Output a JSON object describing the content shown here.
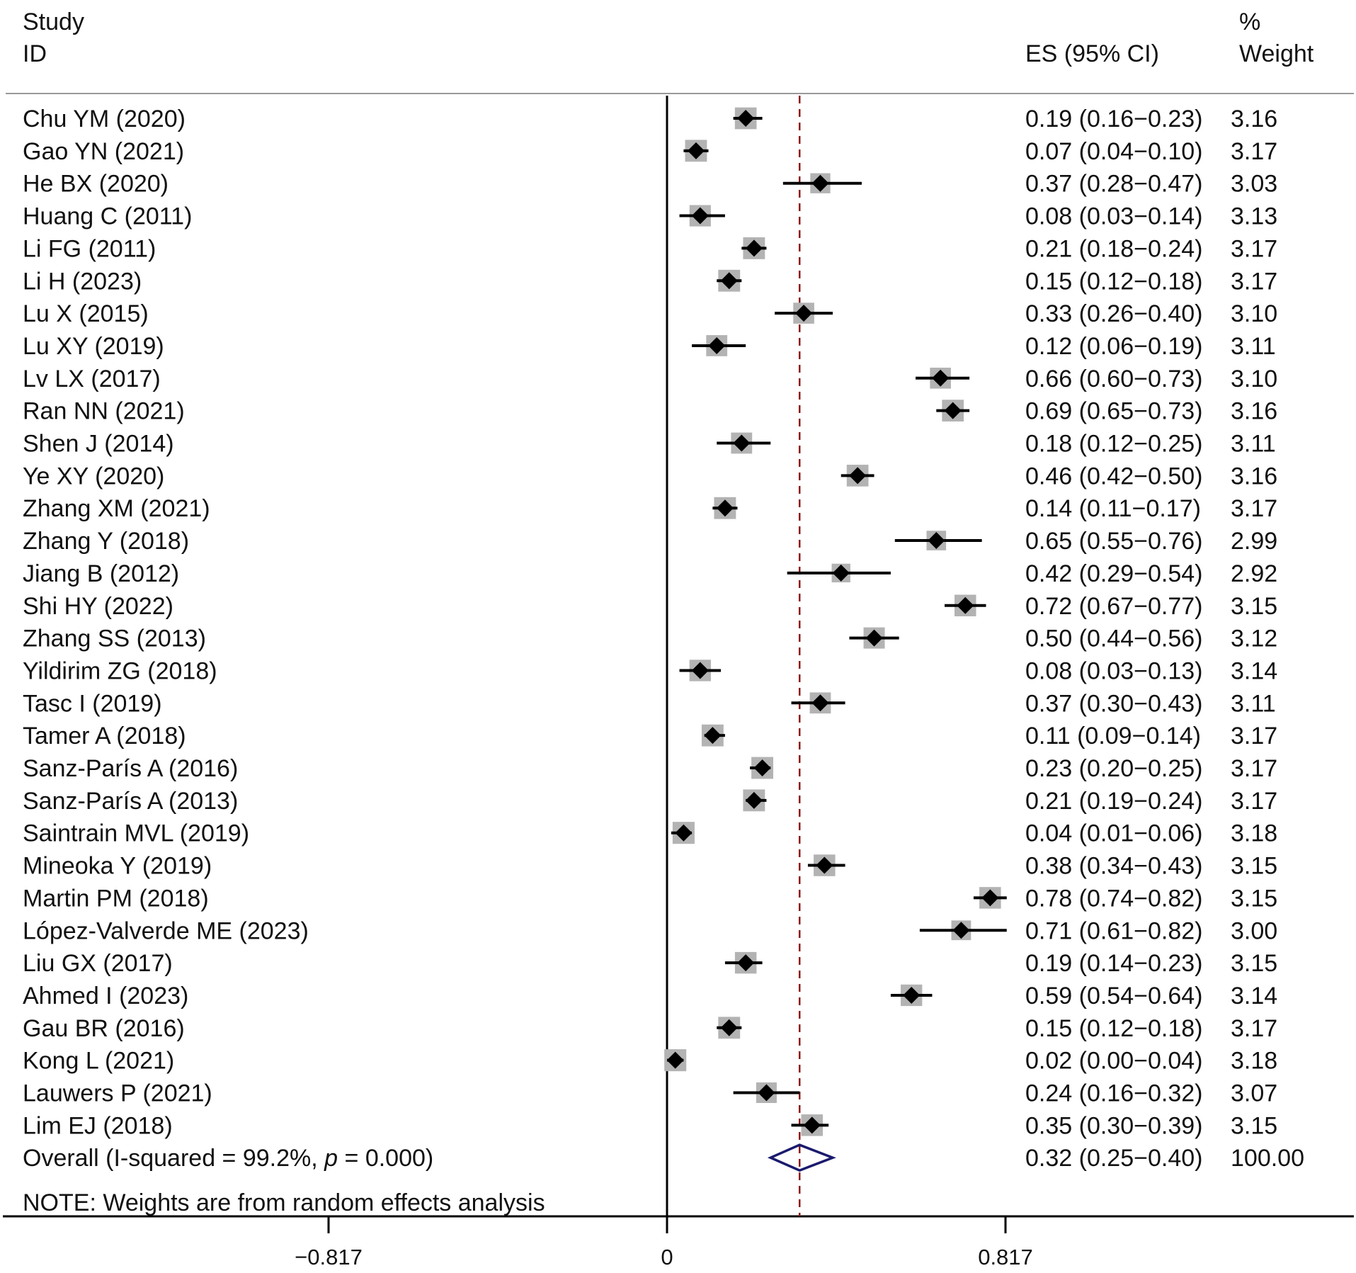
{
  "chart_data": {
    "type": "forest",
    "header": {
      "study_line1": "Study",
      "study_line2": "ID",
      "es_label": "ES (95% CI)",
      "weight_line1": "%",
      "weight_line2": "Weight"
    },
    "studies": [
      {
        "id": "Chu YM (2020)",
        "es": 0.19,
        "lo": 0.16,
        "hi": 0.23,
        "ci_text": "0.19 (0.16−0.23)",
        "weight": "3.16"
      },
      {
        "id": "Gao YN (2021)",
        "es": 0.07,
        "lo": 0.04,
        "hi": 0.1,
        "ci_text": "0.07 (0.04−0.10)",
        "weight": "3.17"
      },
      {
        "id": "He BX (2020)",
        "es": 0.37,
        "lo": 0.28,
        "hi": 0.47,
        "ci_text": "0.37 (0.28−0.47)",
        "weight": "3.03"
      },
      {
        "id": "Huang C (2011)",
        "es": 0.08,
        "lo": 0.03,
        "hi": 0.14,
        "ci_text": "0.08 (0.03−0.14)",
        "weight": "3.13"
      },
      {
        "id": "Li FG (2011)",
        "es": 0.21,
        "lo": 0.18,
        "hi": 0.24,
        "ci_text": "0.21 (0.18−0.24)",
        "weight": "3.17"
      },
      {
        "id": "Li H (2023)",
        "es": 0.15,
        "lo": 0.12,
        "hi": 0.18,
        "ci_text": "0.15 (0.12−0.18)",
        "weight": "3.17"
      },
      {
        "id": "Lu X (2015)",
        "es": 0.33,
        "lo": 0.26,
        "hi": 0.4,
        "ci_text": "0.33 (0.26−0.40)",
        "weight": "3.10"
      },
      {
        "id": "Lu XY (2019)",
        "es": 0.12,
        "lo": 0.06,
        "hi": 0.19,
        "ci_text": "0.12 (0.06−0.19)",
        "weight": "3.11"
      },
      {
        "id": "Lv LX (2017)",
        "es": 0.66,
        "lo": 0.6,
        "hi": 0.73,
        "ci_text": "0.66 (0.60−0.73)",
        "weight": "3.10"
      },
      {
        "id": "Ran NN (2021)",
        "es": 0.69,
        "lo": 0.65,
        "hi": 0.73,
        "ci_text": "0.69 (0.65−0.73)",
        "weight": "3.16"
      },
      {
        "id": "Shen J (2014)",
        "es": 0.18,
        "lo": 0.12,
        "hi": 0.25,
        "ci_text": "0.18 (0.12−0.25)",
        "weight": "3.11"
      },
      {
        "id": "Ye XY (2020)",
        "es": 0.46,
        "lo": 0.42,
        "hi": 0.5,
        "ci_text": "0.46 (0.42−0.50)",
        "weight": "3.16"
      },
      {
        "id": "Zhang XM (2021)",
        "es": 0.14,
        "lo": 0.11,
        "hi": 0.17,
        "ci_text": "0.14 (0.11−0.17)",
        "weight": "3.17"
      },
      {
        "id": "Zhang Y (2018)",
        "es": 0.65,
        "lo": 0.55,
        "hi": 0.76,
        "ci_text": "0.65 (0.55−0.76)",
        "weight": "2.99"
      },
      {
        "id": "Jiang B (2012)",
        "es": 0.42,
        "lo": 0.29,
        "hi": 0.54,
        "ci_text": "0.42 (0.29−0.54)",
        "weight": "2.92"
      },
      {
        "id": "Shi HY (2022)",
        "es": 0.72,
        "lo": 0.67,
        "hi": 0.77,
        "ci_text": "0.72 (0.67−0.77)",
        "weight": "3.15"
      },
      {
        "id": "Zhang SS (2013)",
        "es": 0.5,
        "lo": 0.44,
        "hi": 0.56,
        "ci_text": "0.50 (0.44−0.56)",
        "weight": "3.12"
      },
      {
        "id": "Yildirim ZG (2018)",
        "es": 0.08,
        "lo": 0.03,
        "hi": 0.13,
        "ci_text": "0.08 (0.03−0.13)",
        "weight": "3.14"
      },
      {
        "id": "Tasc I (2019)",
        "es": 0.37,
        "lo": 0.3,
        "hi": 0.43,
        "ci_text": "0.37 (0.30−0.43)",
        "weight": "3.11"
      },
      {
        "id": "Tamer A (2018)",
        "es": 0.11,
        "lo": 0.09,
        "hi": 0.14,
        "ci_text": "0.11 (0.09−0.14)",
        "weight": "3.17"
      },
      {
        "id": "Sanz-París A (2016)",
        "es": 0.23,
        "lo": 0.2,
        "hi": 0.25,
        "ci_text": "0.23 (0.20−0.25)",
        "weight": "3.17"
      },
      {
        "id": "Sanz-París A (2013)",
        "es": 0.21,
        "lo": 0.19,
        "hi": 0.24,
        "ci_text": "0.21 (0.19−0.24)",
        "weight": "3.17"
      },
      {
        "id": "Saintrain MVL (2019)",
        "es": 0.04,
        "lo": 0.01,
        "hi": 0.06,
        "ci_text": "0.04 (0.01−0.06)",
        "weight": "3.18"
      },
      {
        "id": "Mineoka Y (2019)",
        "es": 0.38,
        "lo": 0.34,
        "hi": 0.43,
        "ci_text": "0.38 (0.34−0.43)",
        "weight": "3.15"
      },
      {
        "id": "Martin PM (2018)",
        "es": 0.78,
        "lo": 0.74,
        "hi": 0.82,
        "ci_text": "0.78 (0.74−0.82)",
        "weight": "3.15"
      },
      {
        "id": "López-Valverde ME (2023)",
        "es": 0.71,
        "lo": 0.61,
        "hi": 0.82,
        "ci_text": "0.71 (0.61−0.82)",
        "weight": "3.00"
      },
      {
        "id": "Liu GX (2017)",
        "es": 0.19,
        "lo": 0.14,
        "hi": 0.23,
        "ci_text": "0.19 (0.14−0.23)",
        "weight": "3.15"
      },
      {
        "id": "Ahmed I (2023)",
        "es": 0.59,
        "lo": 0.54,
        "hi": 0.64,
        "ci_text": "0.59 (0.54−0.64)",
        "weight": "3.14"
      },
      {
        "id": "Gau BR (2016)",
        "es": 0.15,
        "lo": 0.12,
        "hi": 0.18,
        "ci_text": "0.15 (0.12−0.18)",
        "weight": "3.17"
      },
      {
        "id": "Kong L (2021)",
        "es": 0.02,
        "lo": 0.0,
        "hi": 0.04,
        "ci_text": "0.02 (0.00−0.04)",
        "weight": "3.18"
      },
      {
        "id": "Lauwers P (2021)",
        "es": 0.24,
        "lo": 0.16,
        "hi": 0.32,
        "ci_text": "0.24 (0.16−0.32)",
        "weight": "3.07"
      },
      {
        "id": "Lim EJ (2018)",
        "es": 0.35,
        "lo": 0.3,
        "hi": 0.39,
        "ci_text": "0.35 (0.30−0.39)",
        "weight": "3.15"
      }
    ],
    "overall": {
      "label_prefix": "Overall  (I-squared = 99.2%, ",
      "label_p": "p",
      "label_suffix": " = 0.000)",
      "es": 0.32,
      "lo": 0.25,
      "hi": 0.4,
      "ci_text": "0.32 (0.25−0.40)",
      "weight": "100.00"
    },
    "note": "NOTE: Weights are from random effects analysis",
    "x_ticks": [
      {
        "value": -0.817,
        "label": "−0.817"
      },
      {
        "value": 0,
        "label": "0"
      },
      {
        "value": 0.817,
        "label": "0.817"
      }
    ],
    "x_range": [
      -1.6,
      1.65
    ],
    "null_line": 0,
    "colors": {
      "marker": "#000000",
      "weight_box": "#b3b3b3",
      "ref_line": "#8b1a1a",
      "overall_diamond": "#1a1a6e"
    }
  }
}
